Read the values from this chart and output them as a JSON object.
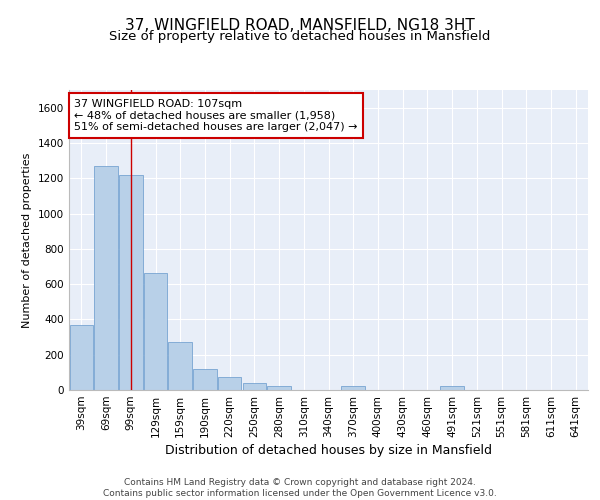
{
  "title1": "37, WINGFIELD ROAD, MANSFIELD, NG18 3HT",
  "title2": "Size of property relative to detached houses in Mansfield",
  "xlabel": "Distribution of detached houses by size in Mansfield",
  "ylabel": "Number of detached properties",
  "categories": [
    "39sqm",
    "69sqm",
    "99sqm",
    "129sqm",
    "159sqm",
    "190sqm",
    "220sqm",
    "250sqm",
    "280sqm",
    "310sqm",
    "340sqm",
    "370sqm",
    "400sqm",
    "430sqm",
    "460sqm",
    "491sqm",
    "521sqm",
    "551sqm",
    "581sqm",
    "611sqm",
    "641sqm"
  ],
  "values": [
    370,
    1270,
    1220,
    665,
    270,
    118,
    75,
    38,
    20,
    0,
    0,
    20,
    0,
    0,
    0,
    20,
    0,
    0,
    0,
    0,
    0
  ],
  "bar_color": "#b8d0e8",
  "bar_edge_color": "#6699cc",
  "property_line_x": 2.0,
  "annotation_text": "37 WINGFIELD ROAD: 107sqm\n← 48% of detached houses are smaller (1,958)\n51% of semi-detached houses are larger (2,047) →",
  "annotation_box_color": "#ffffff",
  "annotation_box_edge": "#cc0000",
  "ylim": [
    0,
    1700
  ],
  "yticks": [
    0,
    200,
    400,
    600,
    800,
    1000,
    1200,
    1400,
    1600
  ],
  "grid_color": "#d0d8e8",
  "bg_color": "#e8eef8",
  "footer": "Contains HM Land Registry data © Crown copyright and database right 2024.\nContains public sector information licensed under the Open Government Licence v3.0.",
  "title1_fontsize": 11,
  "title2_fontsize": 9.5,
  "xlabel_fontsize": 9,
  "ylabel_fontsize": 8,
  "tick_fontsize": 7.5,
  "annotation_fontsize": 8,
  "footer_fontsize": 6.5
}
